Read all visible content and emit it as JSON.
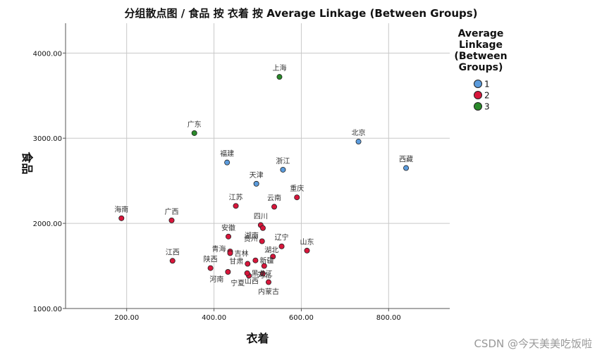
{
  "chart_data": {
    "type": "scatter",
    "title": "分组散点图 / 食品 按 衣着 按 Average Linkage (Between Groups)",
    "xlabel": "衣着",
    "ylabel": "食品",
    "xlim": [
      60,
      940
    ],
    "ylim": [
      1000,
      4350
    ],
    "xticks": [
      "200.00",
      "400.00",
      "600.00",
      "800.00"
    ],
    "xtick_values": [
      200,
      400,
      600,
      800
    ],
    "yticks": [
      "1000.00",
      "2000.00",
      "3000.00",
      "4000.00"
    ],
    "ytick_values": [
      1000,
      2000,
      3000,
      4000
    ],
    "grid": true,
    "legend": {
      "title_lines": [
        "Average",
        "Linkage",
        "(Between",
        "Groups)"
      ],
      "placement": "right",
      "items": [
        {
          "label": "1",
          "color": "#5b9bdc"
        },
        {
          "label": "2",
          "color": "#d8163b"
        },
        {
          "label": "3",
          "color": "#2a8a2a"
        }
      ]
    },
    "points": [
      {
        "name": "上海",
        "x": 550,
        "y": 3720,
        "group": 3,
        "label_pos": "above"
      },
      {
        "name": "广东",
        "x": 355,
        "y": 3060,
        "group": 3,
        "label_pos": "above"
      },
      {
        "name": "北京",
        "x": 731,
        "y": 2960,
        "group": 1,
        "label_pos": "above"
      },
      {
        "name": "西藏",
        "x": 840,
        "y": 2650,
        "group": 1,
        "label_pos": "above"
      },
      {
        "name": "福建",
        "x": 430,
        "y": 2715,
        "group": 1,
        "label_pos": "above"
      },
      {
        "name": "浙江",
        "x": 558,
        "y": 2630,
        "group": 1,
        "label_pos": "above"
      },
      {
        "name": "天津",
        "x": 497,
        "y": 2465,
        "group": 1,
        "label_pos": "above"
      },
      {
        "name": "江苏",
        "x": 450,
        "y": 2205,
        "group": 2,
        "label_pos": "above"
      },
      {
        "name": "云南",
        "x": 538,
        "y": 2195,
        "group": 2,
        "label_pos": "above"
      },
      {
        "name": "重庆",
        "x": 590,
        "y": 2305,
        "group": 2,
        "label_pos": "above"
      },
      {
        "name": "海南",
        "x": 188,
        "y": 2060,
        "group": 2,
        "label_pos": "above"
      },
      {
        "name": "广西",
        "x": 303,
        "y": 2035,
        "group": 2,
        "label_pos": "above"
      },
      {
        "name": "四川",
        "x": 507,
        "y": 1980,
        "group": 2,
        "label_pos": "above"
      },
      {
        "name": "安徽",
        "x": 433,
        "y": 1845,
        "group": 2,
        "label_pos": "above"
      },
      {
        "name": "湖南",
        "x": 512,
        "y": 1945,
        "group": 2,
        "label_pos": "below-left"
      },
      {
        "name": "辽宁",
        "x": 555,
        "y": 1730,
        "group": 2,
        "label_pos": "above"
      },
      {
        "name": "贵州",
        "x": 510,
        "y": 1790,
        "group": 2,
        "label_pos": "left"
      },
      {
        "name": "山东",
        "x": 613,
        "y": 1680,
        "group": 2,
        "label_pos": "above"
      },
      {
        "name": "青海",
        "x": 437,
        "y": 1670,
        "group": 2,
        "label_pos": "left"
      },
      {
        "name": "江西",
        "x": 305,
        "y": 1560,
        "group": 2,
        "label_pos": "above"
      },
      {
        "name": "吉林",
        "x": 437,
        "y": 1650,
        "group": 2,
        "label_pos": "right"
      },
      {
        "name": "湖北",
        "x": 535,
        "y": 1610,
        "group": 2,
        "label_pos": "above-left"
      },
      {
        "name": "新疆",
        "x": 495,
        "y": 1565,
        "group": 2,
        "label_pos": "right"
      },
      {
        "name": "陕西",
        "x": 392,
        "y": 1475,
        "group": 2,
        "label_pos": "above"
      },
      {
        "name": "甘肃",
        "x": 477,
        "y": 1525,
        "group": 2,
        "label_pos": "left"
      },
      {
        "name": "河南",
        "x": 432,
        "y": 1430,
        "group": 2,
        "label_pos": "below-left"
      },
      {
        "name": "宁夏",
        "x": 480,
        "y": 1385,
        "group": 2,
        "label_pos": "below-left"
      },
      {
        "name": "山西",
        "x": 512,
        "y": 1410,
        "group": 2,
        "label_pos": "below-left"
      },
      {
        "name": "河北",
        "x": 515,
        "y": 1500,
        "group": 2,
        "label_pos": "below"
      },
      {
        "name": "黑龙江",
        "x": 476,
        "y": 1415,
        "group": 2,
        "label_pos": "right"
      },
      {
        "name": "内蒙古",
        "x": 525,
        "y": 1310,
        "group": 2,
        "label_pos": "below"
      }
    ]
  },
  "watermark": "CSDN @今天美美吃饭啦"
}
